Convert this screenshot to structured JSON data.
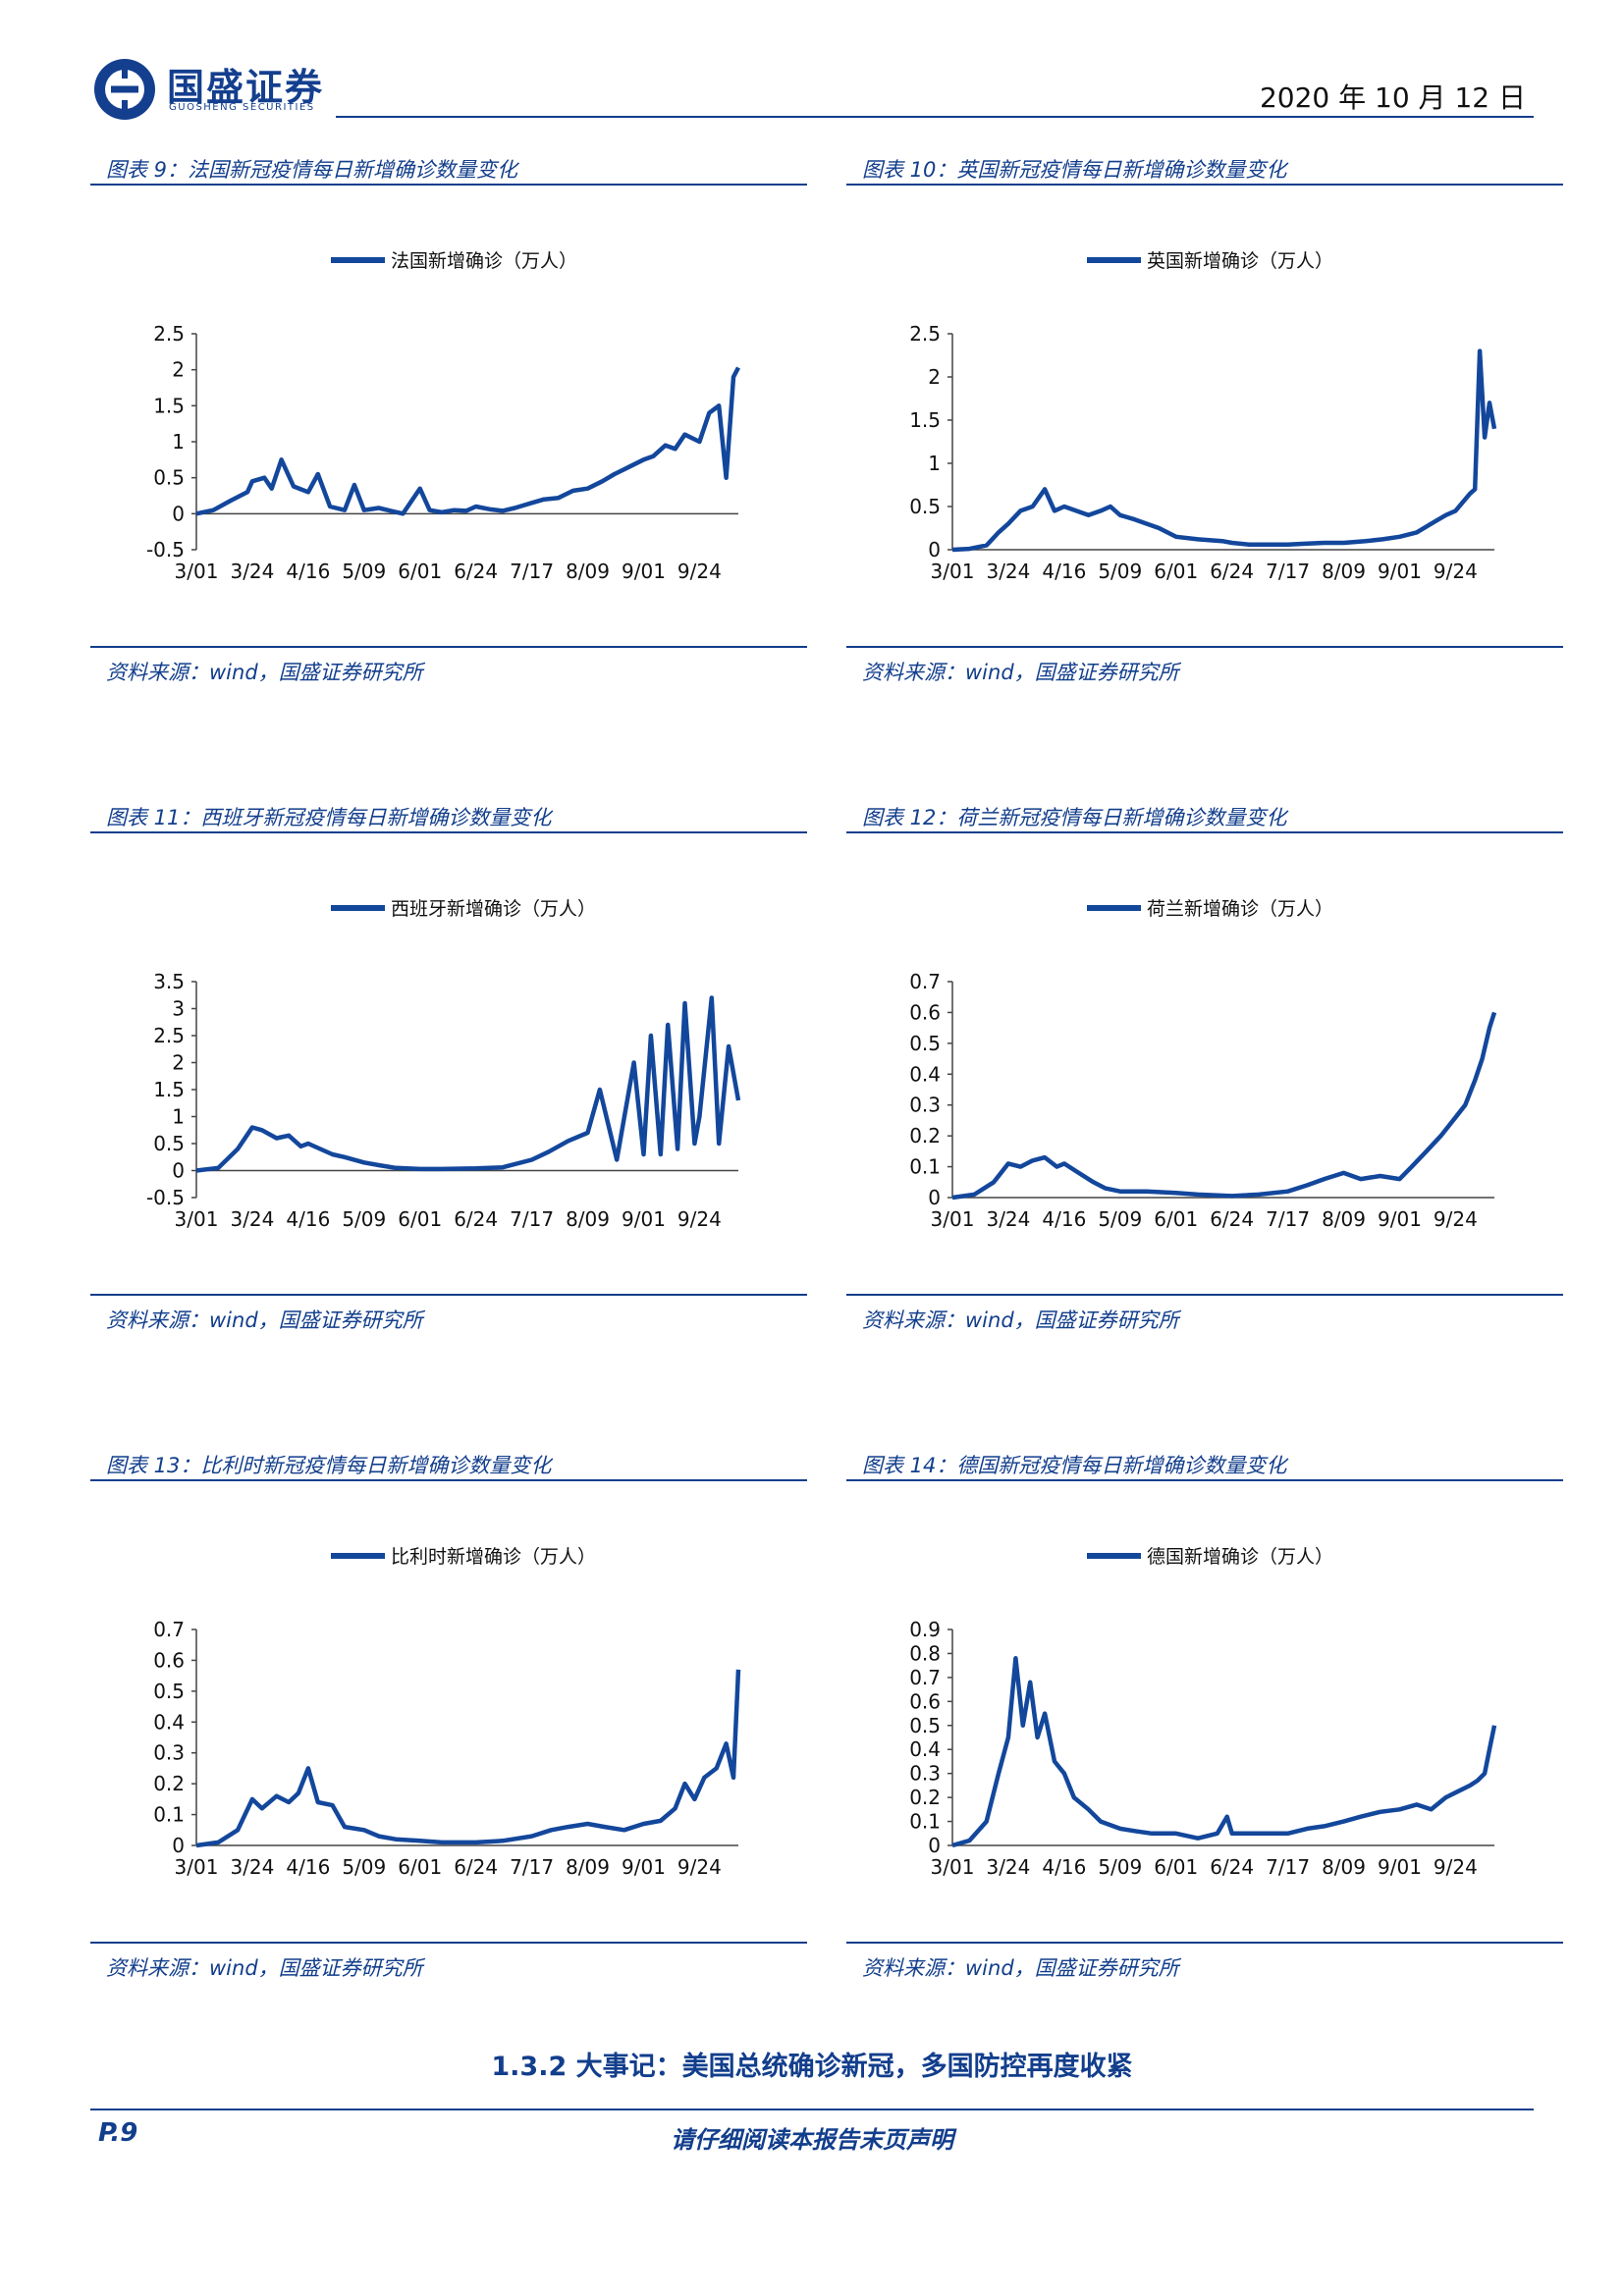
{
  "header": {
    "brand": "国盛证券",
    "brand_en": "GUOSHENG SECURITIES",
    "date": "2020 年 10 月 12 日"
  },
  "colors": {
    "accent": "#123e8c",
    "series": "#13479c"
  },
  "section_title": "1.3.2 大事记：美国总统确诊新冠，多国防控再度收紧",
  "footer": {
    "page": "P.9",
    "note": "请仔细阅读本报告末页声明"
  },
  "chart_data": [
    {
      "id": "france",
      "type": "line",
      "figure_title": "图表 9：法国新冠疫情每日新增确诊数量变化",
      "source": "资料来源：wind，国盛证券研究所",
      "series": [
        {
          "name": "法国新增确诊（万人）",
          "x": [
            "3/01",
            "3/08",
            "3/15",
            "3/22",
            "3/24",
            "3/29",
            "4/01",
            "4/05",
            "4/10",
            "4/16",
            "4/20",
            "4/25",
            "5/01",
            "5/05",
            "5/09",
            "5/15",
            "5/20",
            "5/25",
            "6/01",
            "6/05",
            "6/10",
            "6/15",
            "6/20",
            "6/24",
            "6/30",
            "7/05",
            "7/10",
            "7/17",
            "7/22",
            "7/28",
            "8/03",
            "8/09",
            "8/15",
            "8/20",
            "8/26",
            "9/01",
            "9/05",
            "9/10",
            "9/14",
            "9/18",
            "9/24",
            "9/28",
            "10/02",
            "10/05",
            "10/08",
            "10/10"
          ],
          "values": [
            0.0,
            0.05,
            0.18,
            0.3,
            0.45,
            0.5,
            0.35,
            0.75,
            0.38,
            0.3,
            0.55,
            0.1,
            0.05,
            0.4,
            0.05,
            0.08,
            0.04,
            0.0,
            0.35,
            0.05,
            0.02,
            0.05,
            0.04,
            0.1,
            0.06,
            0.04,
            0.08,
            0.15,
            0.2,
            0.22,
            0.32,
            0.35,
            0.45,
            0.55,
            0.65,
            0.75,
            0.8,
            0.95,
            0.9,
            1.1,
            1.0,
            1.4,
            1.5,
            0.5,
            1.9,
            2.03
          ]
        }
      ],
      "ylim": [
        -0.5,
        2.5
      ],
      "yticks": [
        -0.5,
        0,
        0.5,
        1,
        1.5,
        2,
        2.5
      ],
      "xticks": [
        "3/01",
        "3/24",
        "4/16",
        "5/09",
        "6/01",
        "6/24",
        "7/17",
        "8/09",
        "9/01",
        "9/24"
      ]
    },
    {
      "id": "uk",
      "type": "line",
      "figure_title": "图表 10：英国新冠疫情每日新增确诊数量变化",
      "source": "资料来源：wind，国盛证券研究所",
      "series": [
        {
          "name": "英国新增确诊（万人）",
          "x": [
            "3/01",
            "3/08",
            "3/15",
            "3/20",
            "3/24",
            "3/29",
            "4/03",
            "4/08",
            "4/12",
            "4/16",
            "4/21",
            "4/26",
            "5/01",
            "5/05",
            "5/09",
            "5/15",
            "5/20",
            "5/25",
            "6/01",
            "6/10",
            "6/20",
            "6/24",
            "7/01",
            "7/10",
            "7/17",
            "7/25",
            "8/01",
            "8/09",
            "8/18",
            "8/25",
            "9/01",
            "9/08",
            "9/14",
            "9/20",
            "9/24",
            "9/30",
            "10/02",
            "10/04",
            "10/06",
            "10/08",
            "10/10"
          ],
          "values": [
            0.0,
            0.01,
            0.05,
            0.2,
            0.3,
            0.45,
            0.5,
            0.7,
            0.45,
            0.5,
            0.45,
            0.4,
            0.45,
            0.5,
            0.4,
            0.35,
            0.3,
            0.25,
            0.15,
            0.12,
            0.1,
            0.08,
            0.06,
            0.06,
            0.06,
            0.07,
            0.08,
            0.08,
            0.1,
            0.12,
            0.15,
            0.2,
            0.3,
            0.4,
            0.45,
            0.65,
            0.7,
            2.3,
            1.3,
            1.7,
            1.4
          ]
        }
      ],
      "ylim": [
        0,
        2.5
      ],
      "yticks": [
        0,
        0.5,
        1,
        1.5,
        2,
        2.5
      ],
      "xticks": [
        "3/01",
        "3/24",
        "4/16",
        "5/09",
        "6/01",
        "6/24",
        "7/17",
        "8/09",
        "9/01",
        "9/24"
      ]
    },
    {
      "id": "spain",
      "type": "line",
      "figure_title": "图表 11：西班牙新冠疫情每日新增确诊数量变化",
      "source": "资料来源：wind，国盛证券研究所",
      "series": [
        {
          "name": "西班牙新增确诊（万人）",
          "x": [
            "3/01",
            "3/10",
            "3/18",
            "3/24",
            "3/28",
            "4/03",
            "4/08",
            "4/13",
            "4/16",
            "4/21",
            "4/26",
            "5/01",
            "5/09",
            "5/15",
            "5/22",
            "6/01",
            "6/10",
            "6/24",
            "7/05",
            "7/17",
            "7/24",
            "8/01",
            "8/09",
            "8/14",
            "8/21",
            "8/28",
            "9/01",
            "9/04",
            "9/08",
            "9/11",
            "9/15",
            "9/18",
            "9/22",
            "9/24",
            "9/29",
            "10/02",
            "10/06",
            "10/10"
          ],
          "values": [
            0.0,
            0.05,
            0.4,
            0.8,
            0.75,
            0.6,
            0.65,
            0.45,
            0.5,
            0.4,
            0.3,
            0.25,
            0.15,
            0.1,
            0.05,
            0.03,
            0.03,
            0.04,
            0.06,
            0.2,
            0.35,
            0.55,
            0.7,
            1.5,
            0.2,
            2.0,
            0.3,
            2.5,
            0.3,
            2.7,
            0.4,
            3.1,
            0.5,
            1.0,
            3.2,
            0.5,
            2.3,
            1.3
          ]
        }
      ],
      "ylim": [
        -0.5,
        3.5
      ],
      "yticks": [
        -0.5,
        0,
        0.5,
        1,
        1.5,
        2,
        2.5,
        3,
        3.5
      ],
      "xticks": [
        "3/01",
        "3/24",
        "4/16",
        "5/09",
        "6/01",
        "6/24",
        "7/17",
        "8/09",
        "9/01",
        "9/24"
      ]
    },
    {
      "id": "netherlands",
      "type": "line",
      "figure_title": "图表 12：荷兰新冠疫情每日新增确诊数量变化",
      "source": "资料来源：wind，国盛证券研究所",
      "series": [
        {
          "name": "荷兰新增确诊（万人）",
          "x": [
            "3/01",
            "3/10",
            "3/18",
            "3/24",
            "3/29",
            "4/03",
            "4/08",
            "4/13",
            "4/16",
            "4/22",
            "4/28",
            "5/03",
            "5/09",
            "5/15",
            "5/20",
            "6/01",
            "6/10",
            "6/24",
            "7/05",
            "7/17",
            "7/25",
            "8/01",
            "8/09",
            "8/16",
            "8/24",
            "9/01",
            "9/06",
            "9/12",
            "9/18",
            "9/24",
            "9/28",
            "10/02",
            "10/05",
            "10/08",
            "10/10"
          ],
          "values": [
            0.0,
            0.01,
            0.05,
            0.11,
            0.1,
            0.12,
            0.13,
            0.1,
            0.11,
            0.08,
            0.05,
            0.03,
            0.02,
            0.02,
            0.02,
            0.015,
            0.01,
            0.005,
            0.01,
            0.02,
            0.04,
            0.06,
            0.08,
            0.06,
            0.07,
            0.06,
            0.1,
            0.15,
            0.2,
            0.26,
            0.3,
            0.38,
            0.45,
            0.55,
            0.6
          ]
        }
      ],
      "ylim": [
        0,
        0.7
      ],
      "yticks": [
        0,
        0.1,
        0.2,
        0.3,
        0.4,
        0.5,
        0.6,
        0.7
      ],
      "xticks": [
        "3/01",
        "3/24",
        "4/16",
        "5/09",
        "6/01",
        "6/24",
        "7/17",
        "8/09",
        "9/01",
        "9/24"
      ]
    },
    {
      "id": "belgium",
      "type": "line",
      "figure_title": "图表 13：比利时新冠疫情每日新增确诊数量变化",
      "source": "资料来源：wind，国盛证券研究所",
      "series": [
        {
          "name": "比利时新增确诊（万人）",
          "x": [
            "3/01",
            "3/10",
            "3/18",
            "3/24",
            "3/28",
            "4/03",
            "4/08",
            "4/12",
            "4/16",
            "4/20",
            "4/26",
            "5/01",
            "5/09",
            "5/15",
            "5/22",
            "6/01",
            "6/10",
            "6/24",
            "7/05",
            "7/17",
            "7/25",
            "8/01",
            "8/09",
            "8/16",
            "8/24",
            "9/01",
            "9/08",
            "9/14",
            "9/18",
            "9/22",
            "9/26",
            "10/01",
            "10/05",
            "10/08",
            "10/10"
          ],
          "values": [
            0.0,
            0.01,
            0.05,
            0.15,
            0.12,
            0.16,
            0.14,
            0.17,
            0.25,
            0.14,
            0.13,
            0.06,
            0.05,
            0.03,
            0.02,
            0.015,
            0.01,
            0.01,
            0.015,
            0.03,
            0.05,
            0.06,
            0.07,
            0.06,
            0.05,
            0.07,
            0.08,
            0.12,
            0.2,
            0.15,
            0.22,
            0.25,
            0.33,
            0.22,
            0.57
          ]
        }
      ],
      "ylim": [
        0,
        0.7
      ],
      "yticks": [
        0,
        0.1,
        0.2,
        0.3,
        0.4,
        0.5,
        0.6,
        0.7
      ],
      "xticks": [
        "3/01",
        "3/24",
        "4/16",
        "5/09",
        "6/01",
        "6/24",
        "7/17",
        "8/09",
        "9/01",
        "9/24"
      ]
    },
    {
      "id": "germany",
      "type": "line",
      "figure_title": "图表 14：德国新冠疫情每日新增确诊数量变化",
      "source": "资料来源：wind，国盛证券研究所",
      "series": [
        {
          "name": "德国新增确诊（万人）",
          "x": [
            "3/01",
            "3/08",
            "3/15",
            "3/20",
            "3/24",
            "3/27",
            "3/30",
            "4/02",
            "4/05",
            "4/08",
            "4/12",
            "4/16",
            "4/20",
            "4/26",
            "5/01",
            "5/09",
            "5/15",
            "5/22",
            "6/01",
            "6/10",
            "6/18",
            "6/22",
            "6/24",
            "7/05",
            "7/17",
            "7/25",
            "8/01",
            "8/09",
            "8/16",
            "8/24",
            "9/01",
            "9/08",
            "9/14",
            "9/20",
            "9/24",
            "9/30",
            "10/03",
            "10/06",
            "10/08",
            "10/10"
          ],
          "values": [
            0.0,
            0.02,
            0.1,
            0.3,
            0.45,
            0.78,
            0.5,
            0.68,
            0.45,
            0.55,
            0.35,
            0.3,
            0.2,
            0.15,
            0.1,
            0.07,
            0.06,
            0.05,
            0.05,
            0.03,
            0.05,
            0.12,
            0.05,
            0.05,
            0.05,
            0.07,
            0.08,
            0.1,
            0.12,
            0.14,
            0.15,
            0.17,
            0.15,
            0.2,
            0.22,
            0.25,
            0.27,
            0.3,
            0.4,
            0.5
          ]
        }
      ],
      "ylim": [
        0,
        0.9
      ],
      "yticks": [
        0,
        0.1,
        0.2,
        0.3,
        0.4,
        0.5,
        0.6,
        0.7,
        0.8,
        0.9
      ],
      "xticks": [
        "3/01",
        "3/24",
        "4/16",
        "5/09",
        "6/01",
        "6/24",
        "7/17",
        "8/09",
        "9/01",
        "9/24"
      ]
    }
  ]
}
